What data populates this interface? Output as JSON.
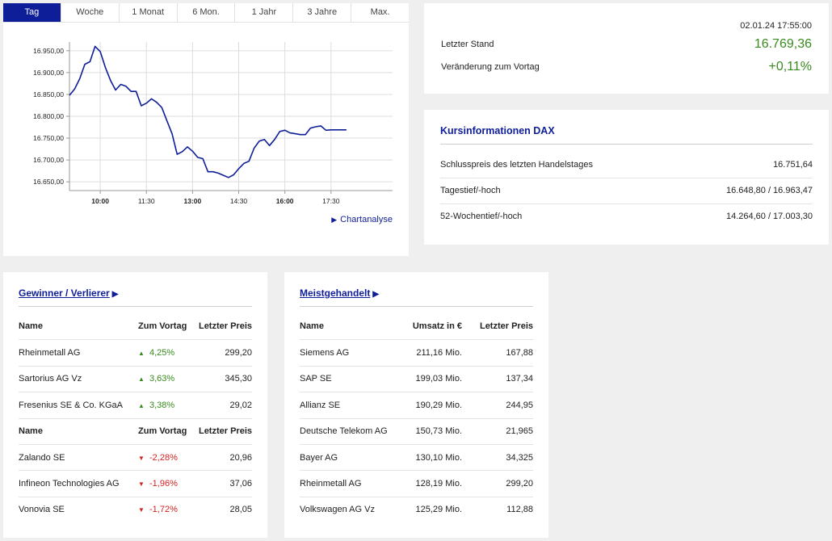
{
  "tabs": [
    "Tag",
    "Woche",
    "1 Monat",
    "6 Mon.",
    "1 Jahr",
    "3 Jahre",
    "Max."
  ],
  "active_tab": 0,
  "chart_data": {
    "type": "line",
    "x_ticks": [
      "10:00",
      "11:30",
      "13:00",
      "14:30",
      "16:00",
      "17:30"
    ],
    "x_ticks_bold": [
      true,
      false,
      true,
      false,
      true,
      false
    ],
    "y_ticks": [
      "16.950,00",
      "16.900,00",
      "16.850,00",
      "16.800,00",
      "16.750,00",
      "16.700,00",
      "16.650,00"
    ],
    "y_tick_values": [
      16950,
      16900,
      16850,
      16800,
      16750,
      16700,
      16650
    ],
    "ylim": [
      16630,
      16970
    ],
    "xlim_minutes": [
      540,
      1170
    ],
    "x_minutes": [
      540,
      550,
      560,
      570,
      580,
      590,
      600,
      610,
      620,
      630,
      640,
      650,
      660,
      670,
      680,
      690,
      700,
      710,
      720,
      730,
      740,
      750,
      760,
      770,
      780,
      790,
      800,
      810,
      820,
      830,
      840,
      850,
      860,
      870,
      880,
      890,
      900,
      910,
      920,
      930,
      940,
      950,
      960,
      970,
      980,
      990,
      1000,
      1010,
      1020,
      1030,
      1040,
      1050,
      1060,
      1070,
      1080
    ],
    "values": [
      16848,
      16862,
      16886,
      16919,
      16925,
      16960,
      16948,
      16912,
      16882,
      16860,
      16873,
      16869,
      16857,
      16857,
      16824,
      16830,
      16840,
      16832,
      16820,
      16790,
      16760,
      16713,
      16719,
      16730,
      16720,
      16706,
      16703,
      16673,
      16673,
      16670,
      16665,
      16660,
      16666,
      16680,
      16692,
      16697,
      16727,
      16743,
      16747,
      16733,
      16747,
      16765,
      16768,
      16762,
      16760,
      16758,
      16758,
      16773,
      16776,
      16778,
      16768,
      16769,
      16769,
      16769,
      16769
    ],
    "line_color": "#0e1e98"
  },
  "chart_link": "Chartanalyse",
  "quote": {
    "datetime": "02.01.24 17:55:00",
    "last_label": "Letzter Stand",
    "last_value": "16.769,36",
    "change_label": "Veränderung zum Vortag",
    "change_value": "+0,11%",
    "positive_color": "#3a8a1e"
  },
  "info": {
    "title": "Kursinformationen DAX",
    "rows": [
      {
        "label": "Schlusspreis des letzten Handelstages",
        "value": "16.751,64"
      },
      {
        "label": "Tagestief/-hoch",
        "value": "16.648,80 / 16.963,47"
      },
      {
        "label": "52-Wochentief/-hoch",
        "value": "14.264,60 / 17.003,30"
      }
    ]
  },
  "gainers": {
    "title": "Gewinner / Verlierer",
    "head": {
      "name": "Name",
      "change": "Zum Vortag",
      "price": "Letzter Preis"
    },
    "up": [
      {
        "name": "Rheinmetall AG",
        "change": "4,25%",
        "price": "299,20"
      },
      {
        "name": "Sartorius AG Vz",
        "change": "3,63%",
        "price": "345,30"
      },
      {
        "name": "Fresenius SE & Co. KGaA",
        "change": "3,38%",
        "price": "29,02"
      }
    ],
    "down": [
      {
        "name": "Zalando SE",
        "change": "-2,28%",
        "price": "20,96"
      },
      {
        "name": "Infineon Technologies AG",
        "change": "-1,96%",
        "price": "37,06"
      },
      {
        "name": "Vonovia SE",
        "change": "-1,72%",
        "price": "28,05"
      }
    ]
  },
  "traded": {
    "title": "Meistgehandelt",
    "head": {
      "name": "Name",
      "volume": "Umsatz in €",
      "price": "Letzter Preis"
    },
    "rows": [
      {
        "name": "Siemens AG",
        "volume": "211,16 Mio.",
        "price": "167,88"
      },
      {
        "name": "SAP SE",
        "volume": "199,03 Mio.",
        "price": "137,34"
      },
      {
        "name": "Allianz SE",
        "volume": "190,29 Mio.",
        "price": "244,95"
      },
      {
        "name": "Deutsche Telekom AG",
        "volume": "150,73 Mio.",
        "price": "21,965"
      },
      {
        "name": "Bayer AG",
        "volume": "130,10 Mio.",
        "price": "34,325"
      },
      {
        "name": "Rheinmetall AG",
        "volume": "128,19 Mio.",
        "price": "299,20"
      },
      {
        "name": "Volkswagen AG Vz",
        "volume": "125,29 Mio.",
        "price": "112,88"
      }
    ]
  }
}
